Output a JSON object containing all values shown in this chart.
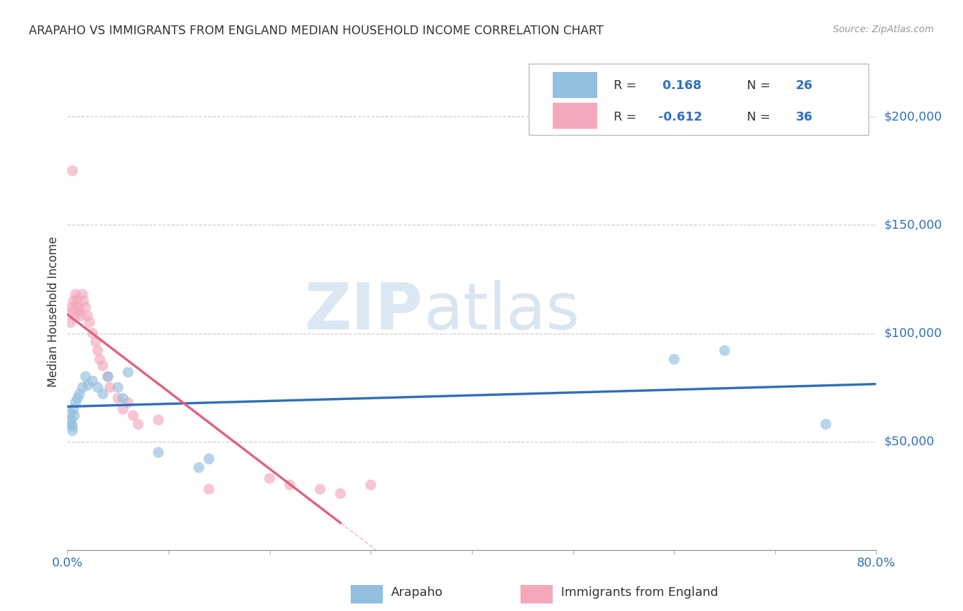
{
  "title": "ARAPAHO VS IMMIGRANTS FROM ENGLAND MEDIAN HOUSEHOLD INCOME CORRELATION CHART",
  "source": "Source: ZipAtlas.com",
  "ylabel": "Median Household Income",
  "xlim": [
    0,
    0.8
  ],
  "ylim": [
    0,
    220000
  ],
  "yticks": [
    50000,
    100000,
    150000,
    200000
  ],
  "ytick_labels": [
    "$50,000",
    "$100,000",
    "$150,000",
    "$200,000"
  ],
  "blue_R": "0.168",
  "blue_N": "26",
  "pink_R": "-0.612",
  "pink_N": "36",
  "blue_color": "#92bfe0",
  "pink_color": "#f5a8bc",
  "blue_line_color": "#3070b8",
  "pink_line_color": "#e06080",
  "blue_scatter_x": [
    0.003,
    0.004,
    0.004,
    0.005,
    0.005,
    0.006,
    0.007,
    0.008,
    0.01,
    0.012,
    0.015,
    0.018,
    0.02,
    0.025,
    0.03,
    0.035,
    0.04,
    0.05,
    0.055,
    0.06,
    0.09,
    0.13,
    0.14,
    0.6,
    0.65,
    0.75
  ],
  "blue_scatter_y": [
    63000,
    60000,
    58000,
    57000,
    55000,
    65000,
    62000,
    68000,
    70000,
    72000,
    75000,
    80000,
    76000,
    78000,
    75000,
    72000,
    80000,
    75000,
    70000,
    82000,
    45000,
    38000,
    42000,
    88000,
    92000,
    58000
  ],
  "pink_scatter_x": [
    0.003,
    0.004,
    0.005,
    0.006,
    0.007,
    0.008,
    0.009,
    0.01,
    0.011,
    0.012,
    0.013,
    0.015,
    0.016,
    0.018,
    0.02,
    0.022,
    0.025,
    0.028,
    0.03,
    0.032,
    0.035,
    0.04,
    0.042,
    0.05,
    0.055,
    0.06,
    0.065,
    0.07,
    0.09,
    0.14,
    0.2,
    0.22,
    0.25,
    0.27,
    0.3,
    0.005
  ],
  "pink_scatter_y": [
    105000,
    112000,
    110000,
    115000,
    108000,
    118000,
    113000,
    116000,
    112000,
    110000,
    108000,
    118000,
    115000,
    112000,
    108000,
    105000,
    100000,
    96000,
    92000,
    88000,
    85000,
    80000,
    75000,
    70000,
    65000,
    68000,
    62000,
    58000,
    60000,
    28000,
    33000,
    30000,
    28000,
    26000,
    30000,
    175000
  ],
  "watermark_zip": "ZIP",
  "watermark_atlas": "atlas",
  "background_color": "#ffffff",
  "grid_color": "#cccccc",
  "title_color": "#333333",
  "axis_label_color": "#3070b8",
  "text_color": "#333333"
}
